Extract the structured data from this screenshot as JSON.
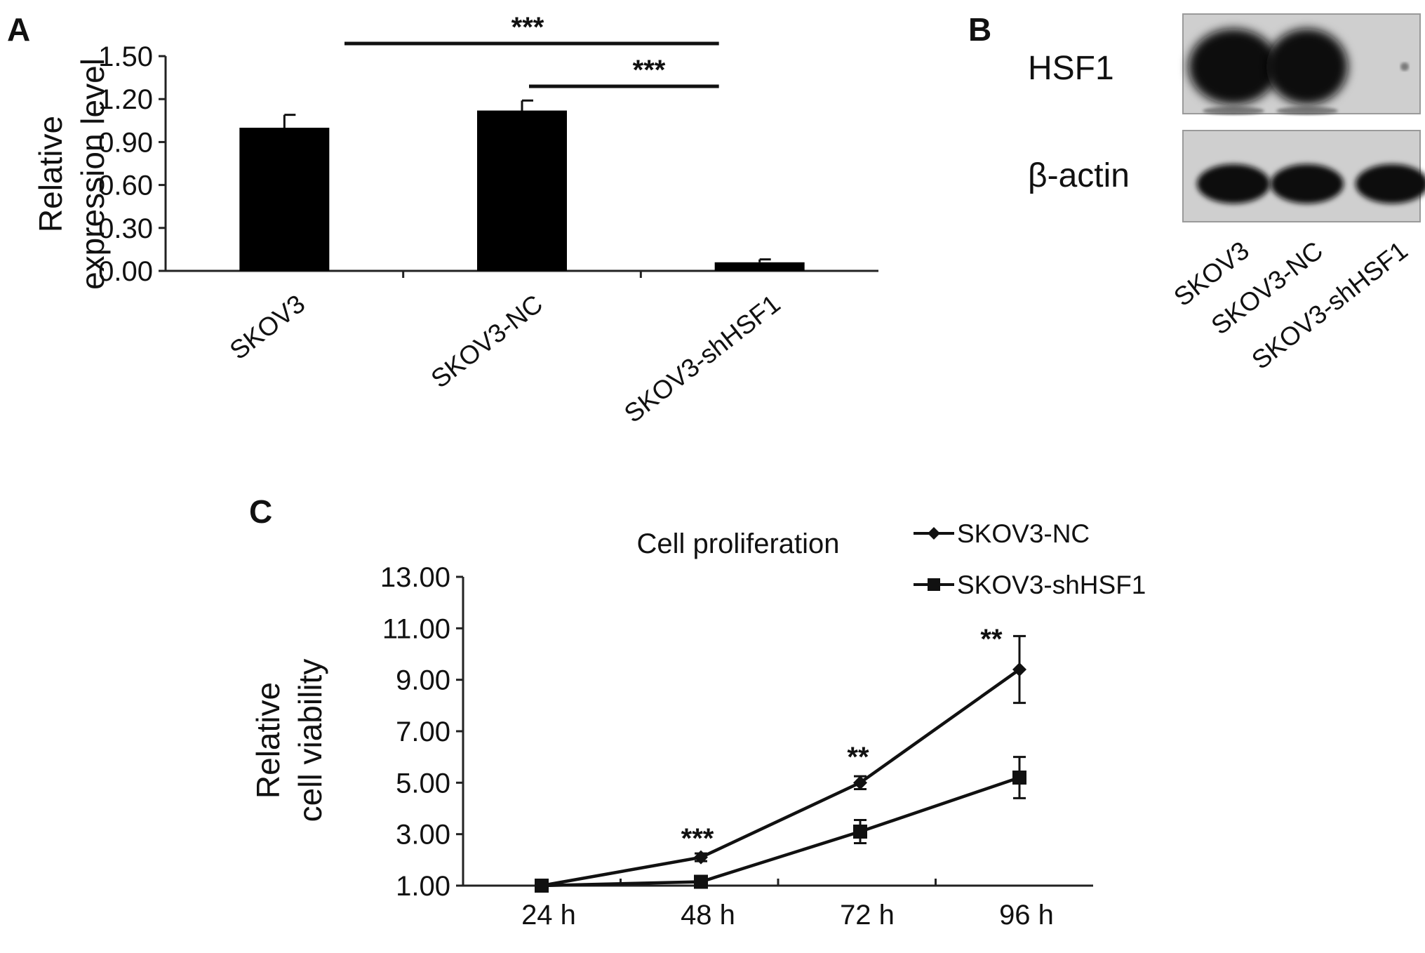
{
  "panels": {
    "a": "A",
    "b": "B",
    "c": "C"
  },
  "chart_data": [
    {
      "type": "bar",
      "ylabel": [
        "Relative",
        "expression level"
      ],
      "categories": [
        "SKOV3",
        "SKOV3-NC",
        "SKOV3-shHSF1"
      ],
      "values": [
        1.0,
        1.12,
        0.06
      ],
      "errors": [
        0.09,
        0.07,
        0.02
      ],
      "ylim": [
        0,
        1.5
      ],
      "yticks": [
        "0.00",
        "0.30",
        "0.60",
        "0.90",
        "1.20",
        "1.50"
      ],
      "color": "#000000",
      "significance": [
        {
          "from": 0,
          "to": 2,
          "label": "***"
        },
        {
          "from": 1,
          "to": 2,
          "label": "***"
        }
      ]
    },
    {
      "type": "table",
      "description_rows": [
        "HSF1",
        "β-actin"
      ],
      "lanes": [
        "SKOV3",
        "SKOV3-NC",
        "SKOV3-shHSF1"
      ],
      "band_intensity": {
        "HSF1": [
          1.0,
          1.0,
          0.05
        ],
        "β-actin": [
          1.0,
          1.0,
          1.0
        ]
      }
    },
    {
      "type": "line",
      "title": "Cell proliferation",
      "ylabel": [
        "Relative",
        "cell viability"
      ],
      "categories": [
        "24 h",
        "48 h",
        "72 h",
        "96 h"
      ],
      "ylim": [
        1,
        13
      ],
      "yticks": [
        "1.00",
        "3.00",
        "5.00",
        "7.00",
        "9.00",
        "11.00",
        "13.00"
      ],
      "series": [
        {
          "name": "SKOV3-NC",
          "marker": "diamond",
          "values": [
            1.0,
            2.1,
            5.0,
            9.4
          ],
          "errors": [
            0.0,
            0.15,
            0.25,
            1.3
          ]
        },
        {
          "name": "SKOV3-shHSF1",
          "marker": "square",
          "values": [
            1.0,
            1.15,
            3.1,
            5.2
          ],
          "errors": [
            0.0,
            0.1,
            0.45,
            0.8
          ]
        }
      ],
      "significance": [
        "***",
        "**",
        "**"
      ],
      "legend_position": "top-right"
    }
  ]
}
